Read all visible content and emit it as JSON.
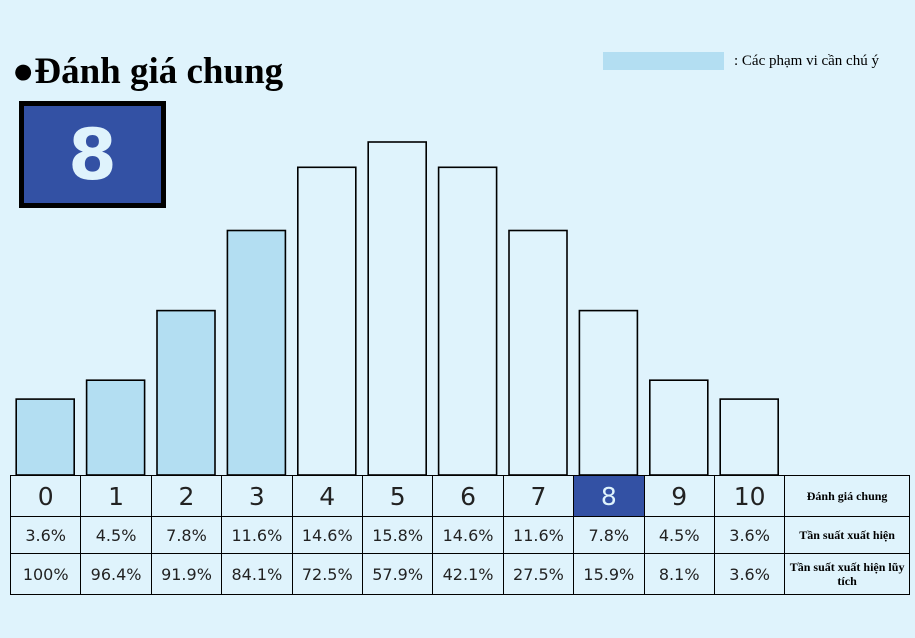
{
  "title": "●Đánh giá chung",
  "score": "8",
  "legend": {
    "label": ": Các phạm vi cần chú ý",
    "color": "#b3def2"
  },
  "colors": {
    "background": "#dff3fc",
    "highlight": "#b3def2",
    "selected": "#3351a4"
  },
  "chart_data": {
    "type": "bar",
    "categories": [
      "0",
      "1",
      "2",
      "3",
      "4",
      "5",
      "6",
      "7",
      "8",
      "9",
      "10"
    ],
    "values": [
      3.6,
      4.5,
      7.8,
      11.6,
      14.6,
      15.8,
      14.6,
      11.6,
      7.8,
      4.5,
      3.6
    ],
    "highlighted": [
      true,
      true,
      true,
      true,
      false,
      false,
      false,
      false,
      false,
      false,
      false
    ],
    "selected_index": 8,
    "ylim": [
      0,
      15.8
    ]
  },
  "table": {
    "row_labels": {
      "score": "Đánh giá chung",
      "frequency": "Tần suất xuất hiện",
      "cumulative": "Tần suất xuất hiện lũy tích"
    },
    "frequency": [
      "3.6%",
      "4.5%",
      "7.8%",
      "11.6%",
      "14.6%",
      "15.8%",
      "14.6%",
      "11.6%",
      "7.8%",
      "4.5%",
      "3.6%"
    ],
    "cumulative": [
      "100%",
      "96.4%",
      "91.9%",
      "84.1%",
      "72.5%",
      "57.9%",
      "42.1%",
      "27.5%",
      "15.9%",
      "8.1%",
      "3.6%"
    ]
  }
}
